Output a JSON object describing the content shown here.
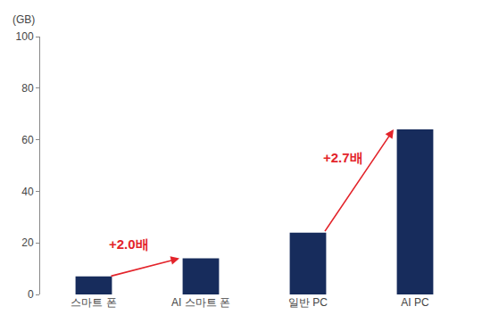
{
  "chart_data": {
    "type": "bar",
    "ylabel": "(GB)",
    "categories": [
      "스마트 폰",
      "AI 스마트 폰",
      "일반 PC",
      "AI PC"
    ],
    "values": [
      7,
      14,
      24,
      64
    ],
    "color": "#172c5c",
    "ylim": [
      0,
      100
    ],
    "yticks": [
      0,
      20,
      40,
      60,
      80,
      100
    ],
    "grid": false,
    "annotations": [
      {
        "text": "+2.0배",
        "from": "스마트 폰",
        "to": "AI 스마트 폰",
        "color": "#e3242b"
      },
      {
        "text": "+2.7배",
        "from": "일반 PC",
        "to": "AI PC",
        "color": "#e3242b"
      }
    ]
  }
}
